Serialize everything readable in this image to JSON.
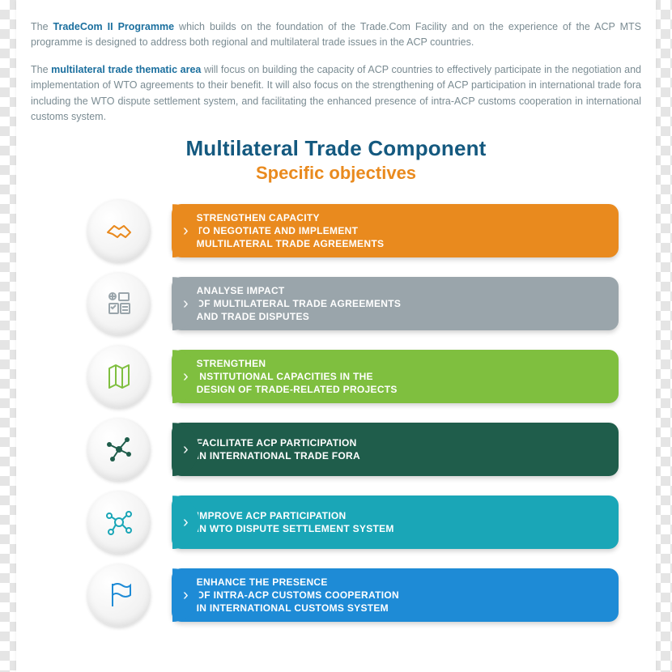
{
  "intro": {
    "p1_pre": "The ",
    "p1_bold": "TradeCom II Programme",
    "p1_post": " which builds on the foundation of the Trade.Com Facility and on the experience of the ACP MTS programme is designed to address both regional and multilateral trade issues in the ACP countries.",
    "p2_pre": "The ",
    "p2_bold": "multilateral trade thematic area",
    "p2_post": " will focus on building the capacity of ACP countries to effectively participate in the negotiation and implementation of WTO agreements to their benefit. It will also focus on the strengthening of ACP participation in international trade fora including the WTO dispute settlement system, and facilitating the enhanced presence of intra-ACP customs cooperation in international customs system."
  },
  "titles": {
    "main": "Multilateral Trade Component",
    "sub": "Specific objectives"
  },
  "objectives": [
    {
      "text": "STRENGTHEN CAPACITY\nTO NEGOTIATE AND IMPLEMENT\nMULTILATERAL TRADE AGREEMENTS",
      "color": "#e98a1e"
    },
    {
      "text": "ANALYSE IMPACT\nOF MULTILATERAL TRADE AGREEMENTS\nAND TRADE DISPUTES",
      "color": "#9aa5ab"
    },
    {
      "text": "STRENGTHEN\nINSTITUTIONAL CAPACITIES IN THE\nDESIGN OF TRADE-RELATED PROJECTS",
      "color": "#7fbf3f"
    },
    {
      "text": "FACILITATE ACP PARTICIPATION\nIN INTERNATIONAL TRADE FORA",
      "color": "#1f5d4b"
    },
    {
      "text": "IMPROVE ACP PARTICIPATION\nIN WTO DISPUTE SETTLEMENT SYSTEM",
      "color": "#1aa6b7"
    },
    {
      "text": "ENHANCE THE PRESENCE\nOF INTRA-ACP CUSTOMS COOPERATION\nIN INTERNATIONAL CUSTOMS SYSTEM",
      "color": "#1e8bd6"
    }
  ],
  "chevron": "›"
}
